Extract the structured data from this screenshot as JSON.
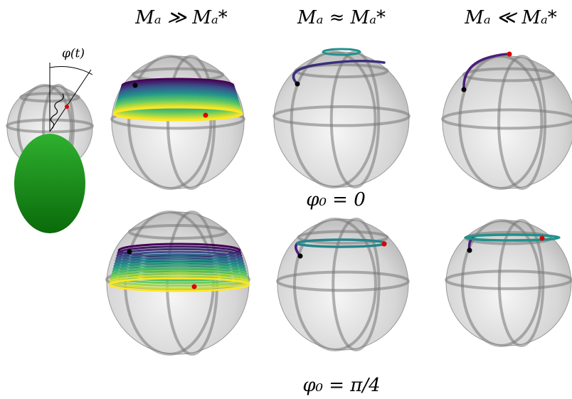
{
  "figure": {
    "column_headers": [
      "Mₐ ≫ Mₐ*",
      "Mₐ ≈ Mₐ*",
      "Mₐ ≪ Mₐ*"
    ],
    "angle_label": "φ(t)",
    "row_labels": [
      "φ₀ = 0",
      "φ₀ = π/4"
    ]
  }
}
